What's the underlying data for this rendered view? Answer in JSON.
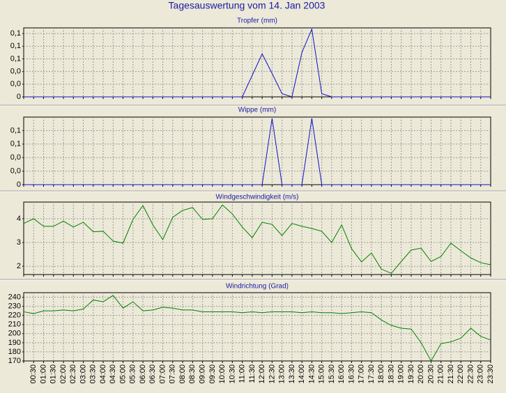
{
  "title": "Tagesauswertung vom 14. Jan 2003",
  "chart_data": [
    {
      "type": "line",
      "title": "Tropfer (mm)",
      "color": "#1010c8",
      "grid": true,
      "ylim": [
        0,
        0.109
      ],
      "yticks": [
        {
          "value": 0,
          "label": "0"
        },
        {
          "value": 0.02,
          "label": "0,0"
        },
        {
          "value": 0.04,
          "label": "0,0"
        },
        {
          "value": 0.06,
          "label": "0,1"
        },
        {
          "value": 0.08,
          "label": "0,1"
        },
        {
          "value": 0.1,
          "label": "0,1"
        }
      ],
      "values": [
        0,
        0,
        0,
        0,
        0,
        0,
        0,
        0,
        0,
        0,
        0,
        0,
        0,
        0,
        0,
        0,
        0,
        0,
        0,
        0,
        0,
        0,
        0,
        0.034,
        0.068,
        0.037,
        0.005,
        0,
        0.07,
        0.107,
        0.005,
        0,
        0,
        0,
        0,
        0,
        0,
        0,
        0,
        0,
        0,
        0,
        0,
        0,
        0,
        0,
        0,
        0
      ]
    },
    {
      "type": "line",
      "title": "Wippe (mm)",
      "color": "#1010c8",
      "grid": true,
      "ylim": [
        0,
        0.1
      ],
      "yticks": [
        {
          "value": 0,
          "label": "0"
        },
        {
          "value": 0.02,
          "label": "0,0"
        },
        {
          "value": 0.04,
          "label": "0,0"
        },
        {
          "value": 0.06,
          "label": "0,1"
        },
        {
          "value": 0.08,
          "label": "0,1"
        }
      ],
      "values": [
        0,
        0,
        0,
        0,
        0,
        0,
        0,
        0,
        0,
        0,
        0,
        0,
        0,
        0,
        0,
        0,
        0,
        0,
        0,
        0,
        0,
        0,
        0,
        0,
        0,
        0.098,
        0,
        0,
        0,
        0.098,
        0,
        0,
        0,
        0,
        0,
        0,
        0,
        0,
        0,
        0,
        0,
        0,
        0,
        0,
        0,
        0,
        0,
        0
      ]
    },
    {
      "type": "line",
      "title": "Windgeschwindigkeit (m/s)",
      "color": "#008000",
      "grid": true,
      "ylim": [
        1.65,
        4.7
      ],
      "yticks": [
        2,
        3,
        4
      ],
      "values": [
        3.8,
        4.0,
        3.68,
        3.68,
        3.9,
        3.65,
        3.85,
        3.45,
        3.47,
        3.06,
        2.97,
        3.97,
        4.55,
        3.74,
        3.12,
        4.06,
        4.35,
        4.47,
        3.97,
        4.0,
        4.58,
        4.2,
        3.65,
        3.2,
        3.85,
        3.76,
        3.29,
        3.8,
        3.68,
        3.59,
        3.47,
        3.0,
        3.74,
        2.74,
        2.18,
        2.56,
        1.88,
        1.7,
        2.2,
        2.68,
        2.76,
        2.2,
        2.41,
        2.97,
        2.65,
        2.35,
        2.15,
        2.06
      ]
    },
    {
      "type": "line",
      "title": "Windrichtung (Grad)",
      "color": "#008000",
      "grid": true,
      "ylim": [
        170,
        245
      ],
      "yticks": [
        170,
        180,
        190,
        200,
        210,
        220,
        230,
        240
      ],
      "values": [
        224,
        222,
        225,
        225,
        226,
        225,
        227,
        237,
        235,
        242,
        228,
        235,
        225,
        226,
        229,
        228,
        226,
        226,
        224,
        224,
        224,
        224,
        223,
        224,
        223,
        224,
        224,
        224,
        223,
        224,
        223,
        223,
        222,
        223,
        224,
        223,
        215,
        209,
        206,
        205,
        190,
        170,
        189,
        191,
        195,
        206,
        197,
        193
      ],
      "categories": [
        null,
        "00:30",
        "01:00",
        "01:30",
        "02:00",
        "02:30",
        "03:00",
        "03:30",
        "04:00",
        "04:30",
        "05:00",
        "05:30",
        "06:00",
        "06:30",
        "07:00",
        "07:30",
        "08:00",
        "08:30",
        "09:00",
        "09:30",
        "10:00",
        "10:30",
        "11:00",
        "11:30",
        "12:00",
        "12:30",
        "13:00",
        "13:30",
        "14:00",
        "14:30",
        "15:00",
        "15:30",
        "16:00",
        "16:30",
        "17:00",
        "17:30",
        "18:00",
        "18:30",
        "19:00",
        "19:30",
        "20:00",
        "20:30",
        "21:00",
        "21:30",
        "22:00",
        "22:30",
        "23:00",
        "23:30"
      ]
    }
  ]
}
